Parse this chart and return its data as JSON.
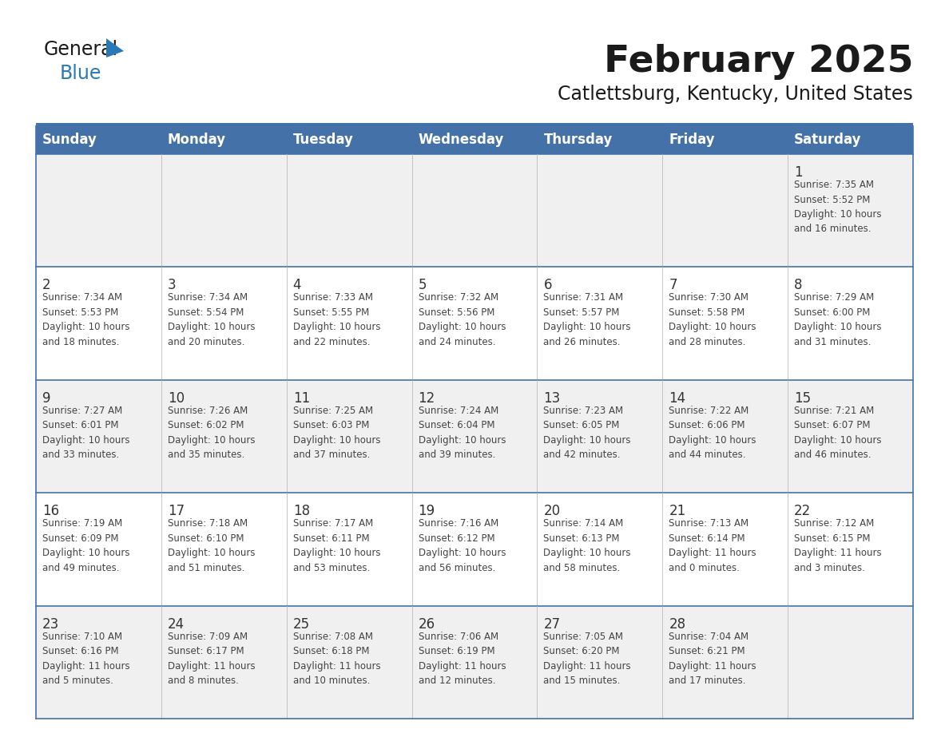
{
  "title": "February 2025",
  "subtitle": "Catlettsburg, Kentucky, United States",
  "days_of_week": [
    "Sunday",
    "Monday",
    "Tuesday",
    "Wednesday",
    "Thursday",
    "Friday",
    "Saturday"
  ],
  "header_bg": "#4472a8",
  "header_text": "#ffffff",
  "row_bg_odd": "#f0f0f0",
  "row_bg_even": "#ffffff",
  "border_color": "#4472a8",
  "day_num_color": "#333333",
  "text_color": "#444444",
  "calendar_data": [
    [
      {
        "day": null,
        "info": null
      },
      {
        "day": null,
        "info": null
      },
      {
        "day": null,
        "info": null
      },
      {
        "day": null,
        "info": null
      },
      {
        "day": null,
        "info": null
      },
      {
        "day": null,
        "info": null
      },
      {
        "day": 1,
        "info": "Sunrise: 7:35 AM\nSunset: 5:52 PM\nDaylight: 10 hours\nand 16 minutes."
      }
    ],
    [
      {
        "day": 2,
        "info": "Sunrise: 7:34 AM\nSunset: 5:53 PM\nDaylight: 10 hours\nand 18 minutes."
      },
      {
        "day": 3,
        "info": "Sunrise: 7:34 AM\nSunset: 5:54 PM\nDaylight: 10 hours\nand 20 minutes."
      },
      {
        "day": 4,
        "info": "Sunrise: 7:33 AM\nSunset: 5:55 PM\nDaylight: 10 hours\nand 22 minutes."
      },
      {
        "day": 5,
        "info": "Sunrise: 7:32 AM\nSunset: 5:56 PM\nDaylight: 10 hours\nand 24 minutes."
      },
      {
        "day": 6,
        "info": "Sunrise: 7:31 AM\nSunset: 5:57 PM\nDaylight: 10 hours\nand 26 minutes."
      },
      {
        "day": 7,
        "info": "Sunrise: 7:30 AM\nSunset: 5:58 PM\nDaylight: 10 hours\nand 28 minutes."
      },
      {
        "day": 8,
        "info": "Sunrise: 7:29 AM\nSunset: 6:00 PM\nDaylight: 10 hours\nand 31 minutes."
      }
    ],
    [
      {
        "day": 9,
        "info": "Sunrise: 7:27 AM\nSunset: 6:01 PM\nDaylight: 10 hours\nand 33 minutes."
      },
      {
        "day": 10,
        "info": "Sunrise: 7:26 AM\nSunset: 6:02 PM\nDaylight: 10 hours\nand 35 minutes."
      },
      {
        "day": 11,
        "info": "Sunrise: 7:25 AM\nSunset: 6:03 PM\nDaylight: 10 hours\nand 37 minutes."
      },
      {
        "day": 12,
        "info": "Sunrise: 7:24 AM\nSunset: 6:04 PM\nDaylight: 10 hours\nand 39 minutes."
      },
      {
        "day": 13,
        "info": "Sunrise: 7:23 AM\nSunset: 6:05 PM\nDaylight: 10 hours\nand 42 minutes."
      },
      {
        "day": 14,
        "info": "Sunrise: 7:22 AM\nSunset: 6:06 PM\nDaylight: 10 hours\nand 44 minutes."
      },
      {
        "day": 15,
        "info": "Sunrise: 7:21 AM\nSunset: 6:07 PM\nDaylight: 10 hours\nand 46 minutes."
      }
    ],
    [
      {
        "day": 16,
        "info": "Sunrise: 7:19 AM\nSunset: 6:09 PM\nDaylight: 10 hours\nand 49 minutes."
      },
      {
        "day": 17,
        "info": "Sunrise: 7:18 AM\nSunset: 6:10 PM\nDaylight: 10 hours\nand 51 minutes."
      },
      {
        "day": 18,
        "info": "Sunrise: 7:17 AM\nSunset: 6:11 PM\nDaylight: 10 hours\nand 53 minutes."
      },
      {
        "day": 19,
        "info": "Sunrise: 7:16 AM\nSunset: 6:12 PM\nDaylight: 10 hours\nand 56 minutes."
      },
      {
        "day": 20,
        "info": "Sunrise: 7:14 AM\nSunset: 6:13 PM\nDaylight: 10 hours\nand 58 minutes."
      },
      {
        "day": 21,
        "info": "Sunrise: 7:13 AM\nSunset: 6:14 PM\nDaylight: 11 hours\nand 0 minutes."
      },
      {
        "day": 22,
        "info": "Sunrise: 7:12 AM\nSunset: 6:15 PM\nDaylight: 11 hours\nand 3 minutes."
      }
    ],
    [
      {
        "day": 23,
        "info": "Sunrise: 7:10 AM\nSunset: 6:16 PM\nDaylight: 11 hours\nand 5 minutes."
      },
      {
        "day": 24,
        "info": "Sunrise: 7:09 AM\nSunset: 6:17 PM\nDaylight: 11 hours\nand 8 minutes."
      },
      {
        "day": 25,
        "info": "Sunrise: 7:08 AM\nSunset: 6:18 PM\nDaylight: 11 hours\nand 10 minutes."
      },
      {
        "day": 26,
        "info": "Sunrise: 7:06 AM\nSunset: 6:19 PM\nDaylight: 11 hours\nand 12 minutes."
      },
      {
        "day": 27,
        "info": "Sunrise: 7:05 AM\nSunset: 6:20 PM\nDaylight: 11 hours\nand 15 minutes."
      },
      {
        "day": 28,
        "info": "Sunrise: 7:04 AM\nSunset: 6:21 PM\nDaylight: 11 hours\nand 17 minutes."
      },
      {
        "day": null,
        "info": null
      }
    ]
  ]
}
